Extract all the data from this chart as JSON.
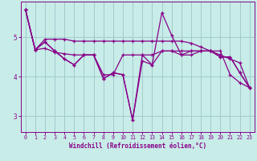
{
  "xlabel": "Windchill (Refroidissement éolien,°C)",
  "background_color": "#c8ece8",
  "grid_color": "#a0cccc",
  "line_color": "#880088",
  "xlim": [
    -0.5,
    23.5
  ],
  "ylim": [
    2.6,
    5.9
  ],
  "yticks": [
    3,
    4,
    5
  ],
  "xticks": [
    0,
    1,
    2,
    3,
    4,
    5,
    6,
    7,
    8,
    9,
    10,
    11,
    12,
    13,
    14,
    15,
    16,
    17,
    18,
    19,
    20,
    21,
    22,
    23
  ],
  "series": [
    [
      5.7,
      4.68,
      4.72,
      4.62,
      4.58,
      4.55,
      4.55,
      4.55,
      4.05,
      4.05,
      4.55,
      4.55,
      4.55,
      4.55,
      4.65,
      4.65,
      4.65,
      4.65,
      4.65,
      4.65,
      4.65,
      4.05,
      3.85,
      3.72
    ],
    [
      5.7,
      4.68,
      4.88,
      4.65,
      4.45,
      4.3,
      4.55,
      4.55,
      3.95,
      4.1,
      4.05,
      2.9,
      4.4,
      4.3,
      5.62,
      5.05,
      4.55,
      4.55,
      4.65,
      4.65,
      4.5,
      4.5,
      4.1,
      3.72
    ],
    [
      5.7,
      4.68,
      4.88,
      4.65,
      4.45,
      4.3,
      4.55,
      4.55,
      3.95,
      4.1,
      4.05,
      2.9,
      4.55,
      4.3,
      4.65,
      4.65,
      4.55,
      4.65,
      4.65,
      4.65,
      4.5,
      4.5,
      4.1,
      3.72
    ],
    [
      5.7,
      4.68,
      4.95,
      4.95,
      4.95,
      4.9,
      4.9,
      4.9,
      4.9,
      4.9,
      4.9,
      4.9,
      4.9,
      4.9,
      4.9,
      4.9,
      4.9,
      4.85,
      4.75,
      4.65,
      4.55,
      4.45,
      4.35,
      3.72
    ]
  ]
}
